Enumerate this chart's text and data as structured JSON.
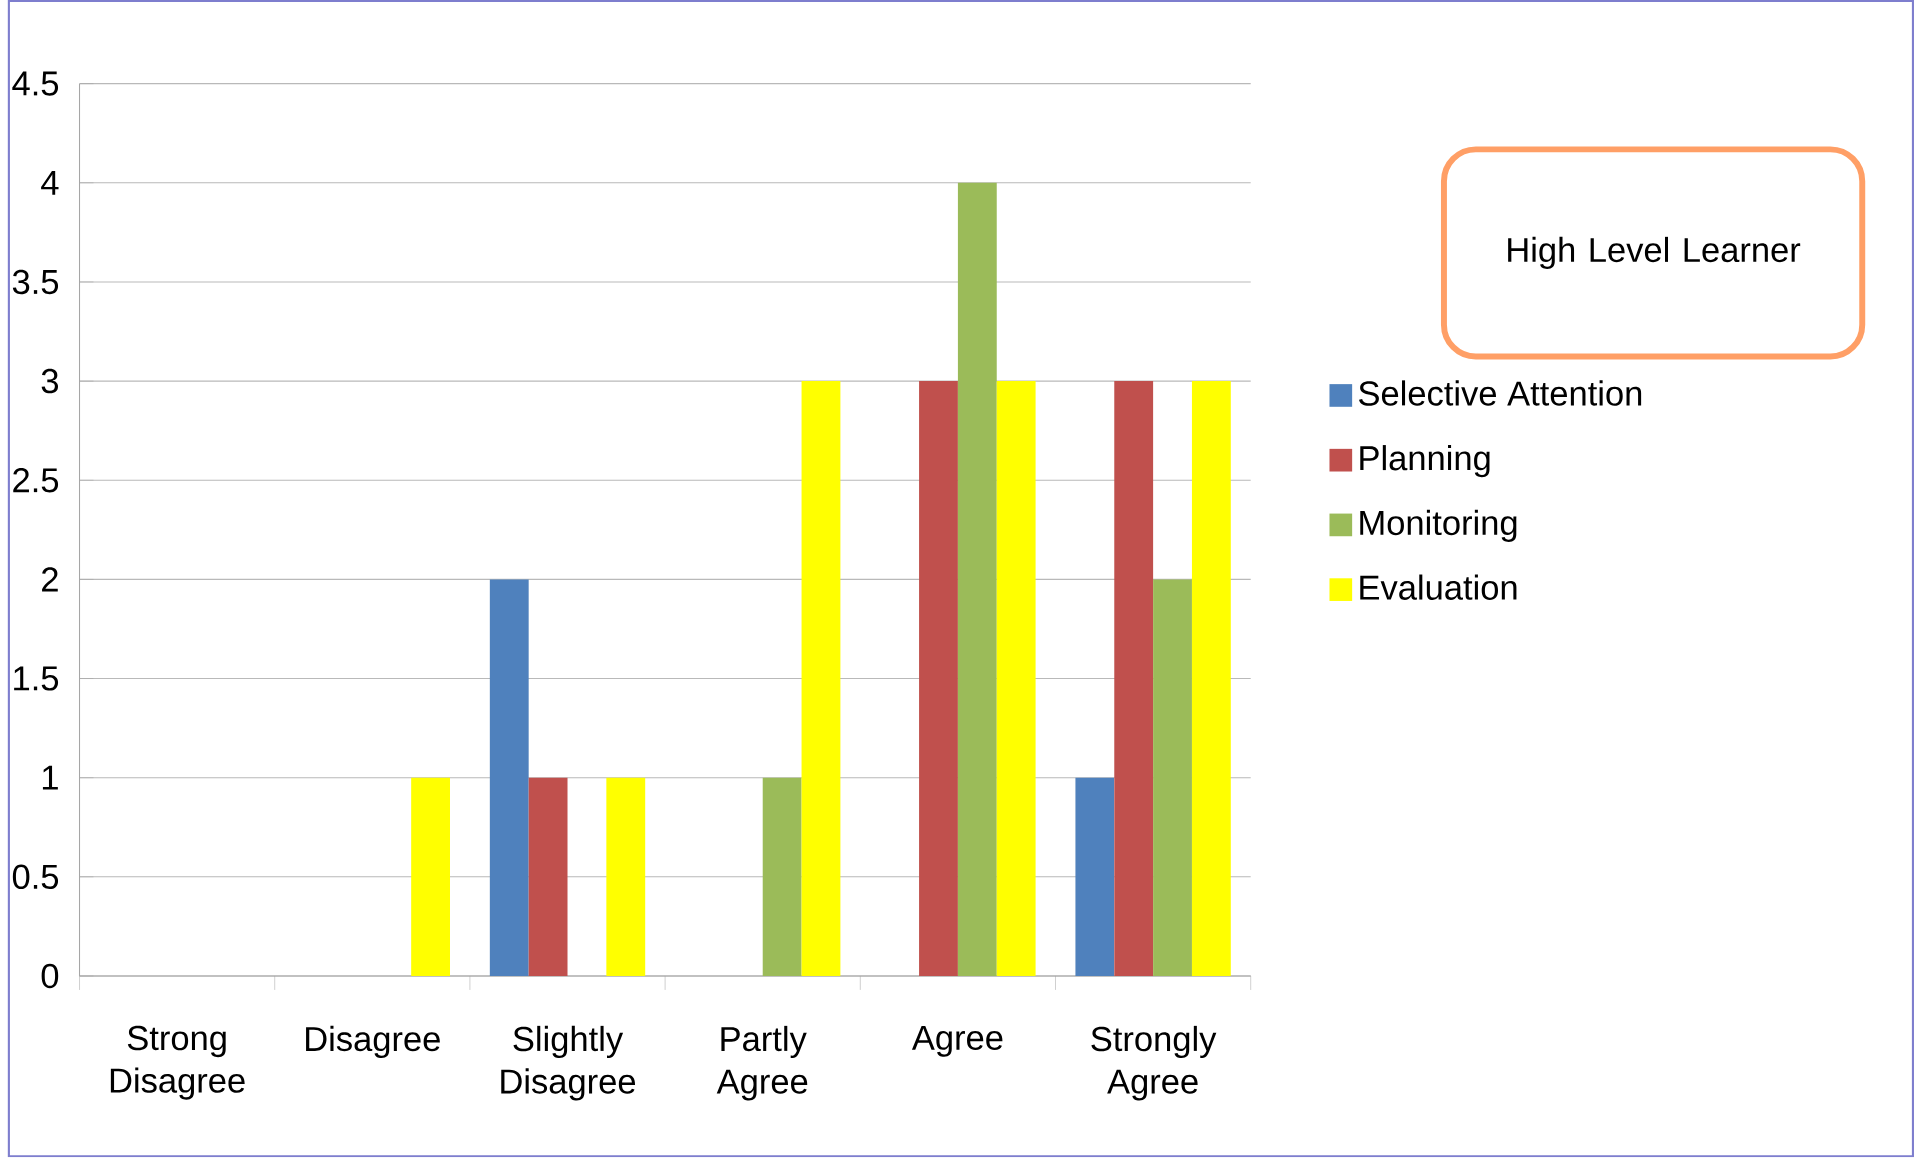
{
  "chart_data": {
    "type": "bar",
    "title": "High Level Learner",
    "categories": [
      "Strong Disagree",
      "Disagree",
      "Slightly Disagree",
      "Partly Agree",
      "Agree",
      "Strongly Agree"
    ],
    "series": [
      {
        "name": "Selective Attention",
        "color": "#4f81bd",
        "values": [
          0,
          0,
          2,
          0,
          0,
          1
        ]
      },
      {
        "name": "Planning",
        "color": "#c0504d",
        "values": [
          0,
          0,
          1,
          0,
          3,
          3
        ]
      },
      {
        "name": "Monitoring",
        "color": "#9bbb59",
        "values": [
          0,
          0,
          0,
          1,
          4,
          2
        ]
      },
      {
        "name": "Evaluation",
        "color": "#ffff00",
        "values": [
          0,
          1,
          1,
          3,
          3,
          3
        ]
      }
    ],
    "ylim": [
      0,
      4.5
    ],
    "yticks": [
      0,
      0.5,
      1,
      1.5,
      2,
      2.5,
      3,
      3.5,
      4,
      4.5
    ],
    "grid": "y",
    "legend": "right"
  }
}
